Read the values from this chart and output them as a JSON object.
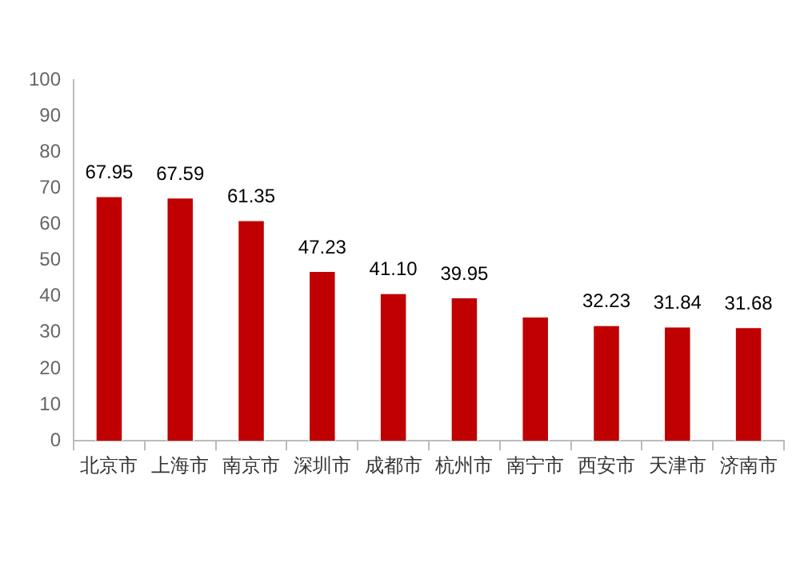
{
  "chart_data": {
    "type": "bar",
    "categories": [
      "北京市",
      "上海市",
      "南京市",
      "深圳市",
      "成都市",
      "杭州市",
      "南宁市",
      "西安市",
      "天津市",
      "济南市"
    ],
    "values": [
      67.95,
      67.59,
      61.35,
      47.23,
      41.1,
      39.95,
      34.6,
      32.23,
      31.84,
      31.68
    ],
    "value_labels": [
      "67.95",
      "67.59",
      "61.35",
      "47.23",
      "41.10",
      "39.95",
      null,
      "32.23",
      "31.84",
      "31.68"
    ],
    "color": "#c00000",
    "ylim": [
      0,
      100
    ],
    "yticks": [
      0,
      10,
      20,
      30,
      40,
      50,
      60,
      70,
      80,
      90,
      100
    ],
    "grid": false,
    "legend": false
  }
}
